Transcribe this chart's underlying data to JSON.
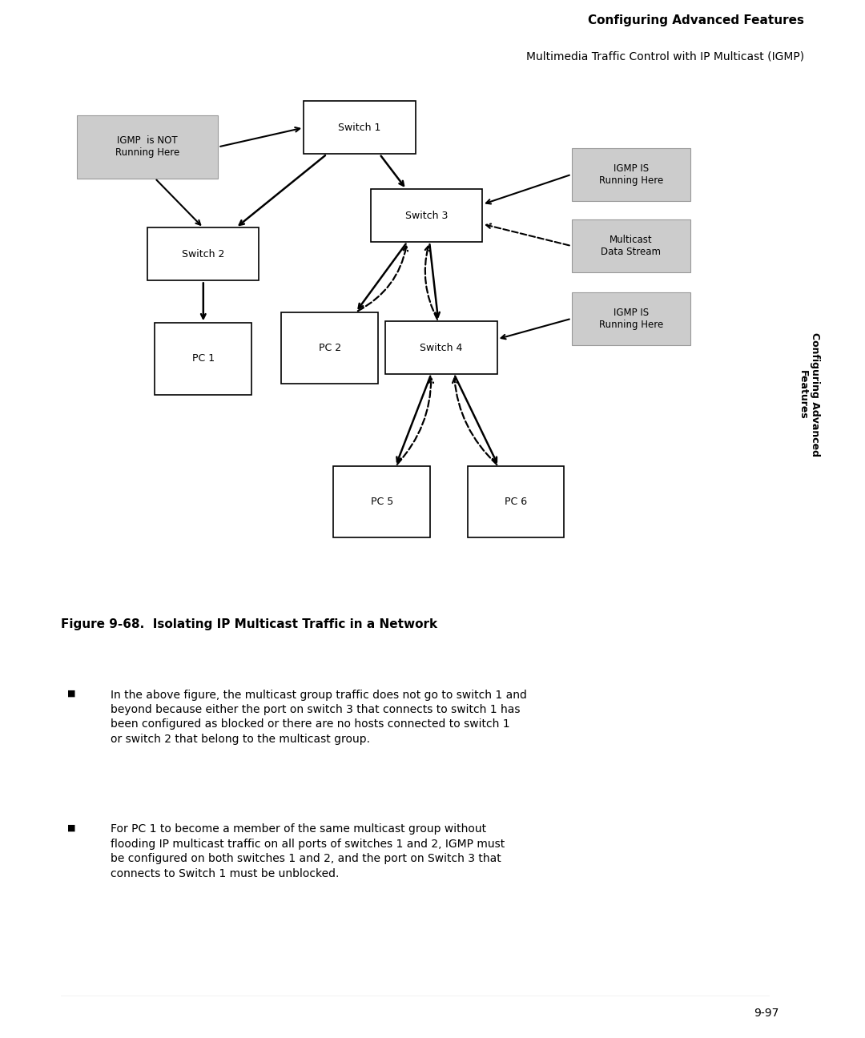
{
  "page_title_bold": "Configuring Advanced Features",
  "page_title_sub": "Multimedia Traffic Control with IP Multicast (IGMP)",
  "figure_caption": "Figure 9-68.  Isolating IP Multicast Traffic in a Network",
  "bullet1": "In the above figure, the multicast group traffic does not go to switch 1 and\nbeyond because either the port on switch 3 that connects to switch 1 has\nbeen configured as blocked or there are no hosts connected to switch 1\nor switch 2 that belong to the multicast group.",
  "bullet2": "For PC 1 to become a member of the same multicast group without\nflooding IP multicast traffic on all ports of switches 1 and 2, IGMP must\nbe configured on both switches 1 and 2, and the port on Switch 3 that\nconnects to Switch 1 must be unblocked.",
  "page_number": "9-97",
  "sidebar_text": "Configuring Advanced\nFeatures",
  "bg_color": "#ffffff",
  "label_bg": "#cccccc",
  "sidebar_bg": "#cccccc"
}
